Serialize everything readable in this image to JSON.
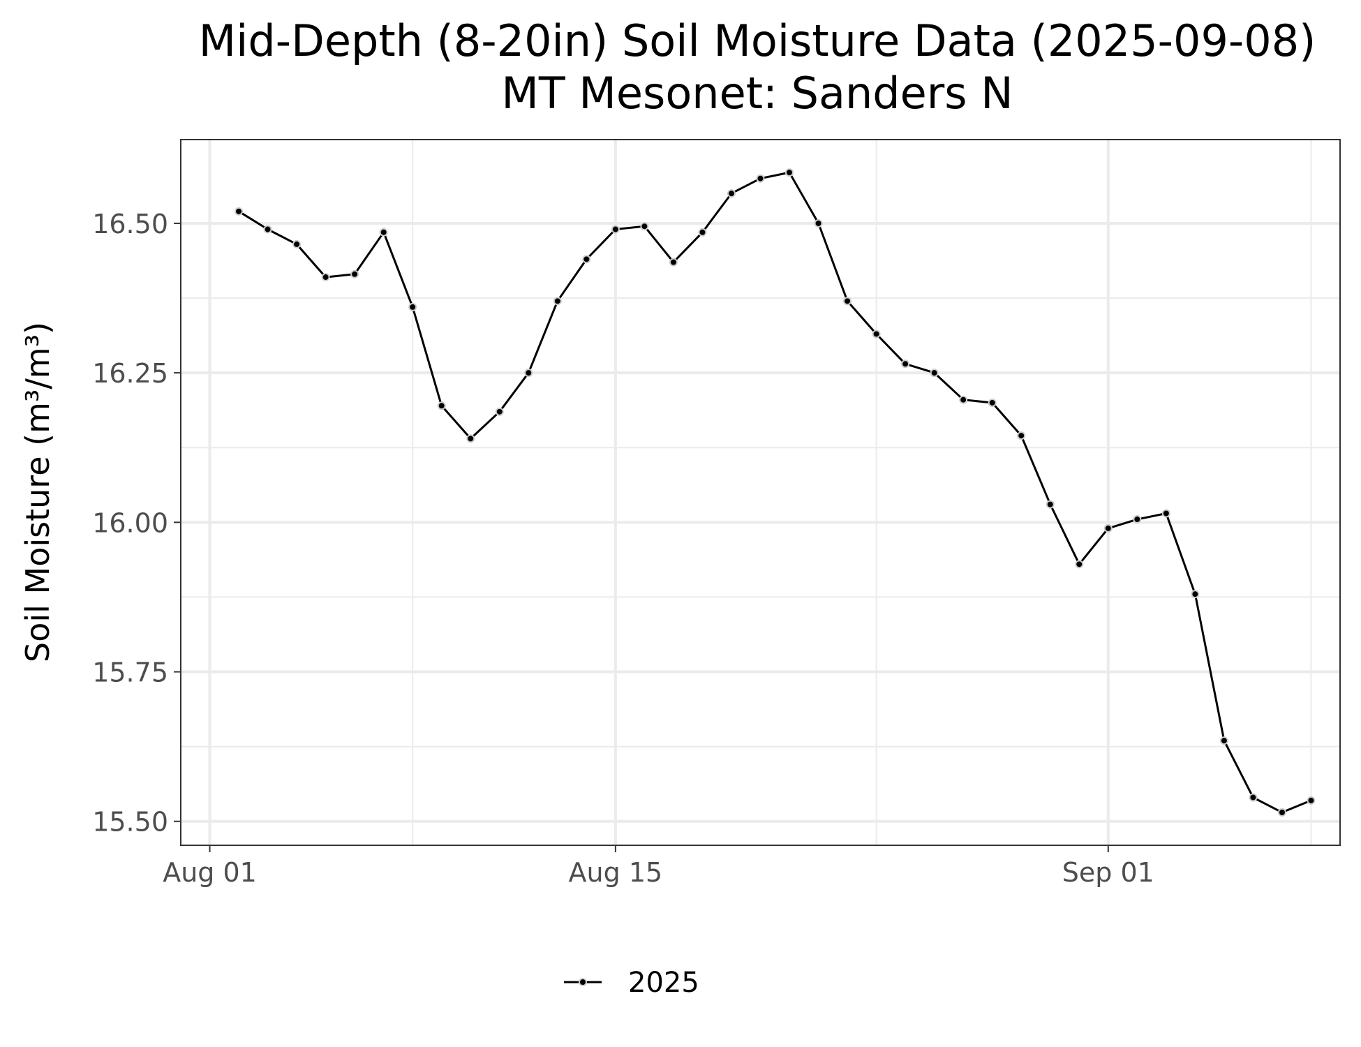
{
  "chart_data": {
    "type": "line",
    "title": "Mid-Depth (8-20in) Soil Moisture Data (2025-09-08)",
    "subtitle": "MT Mesonet: Sanders N",
    "xlabel": "",
    "ylabel": "Soil Moisture (m³/m³)",
    "x_axis_type": "date",
    "xlim": [
      "2025-07-31",
      "2025-09-09"
    ],
    "x_major_ticks": [
      "2025-08-01",
      "2025-08-15",
      "2025-09-01"
    ],
    "x_tick_labels": [
      "Aug 01",
      "Aug 15",
      "Sep 01"
    ],
    "x_minor_ticks": [
      "2025-08-08",
      "2025-08-24",
      "2025-09-08"
    ],
    "ylim": [
      15.46,
      16.64
    ],
    "y_major_ticks": [
      15.5,
      15.75,
      16.0,
      16.25,
      16.5
    ],
    "y_tick_labels": [
      "15.50",
      "15.75",
      "16.00",
      "16.25",
      "16.50"
    ],
    "grid": true,
    "legend_position": "bottom",
    "series": [
      {
        "name": "2025",
        "color": "#000000",
        "x": [
          "2025-08-02",
          "2025-08-03",
          "2025-08-04",
          "2025-08-05",
          "2025-08-06",
          "2025-08-07",
          "2025-08-08",
          "2025-08-09",
          "2025-08-10",
          "2025-08-11",
          "2025-08-12",
          "2025-08-13",
          "2025-08-14",
          "2025-08-15",
          "2025-08-16",
          "2025-08-17",
          "2025-08-18",
          "2025-08-19",
          "2025-08-20",
          "2025-08-21",
          "2025-08-22",
          "2025-08-23",
          "2025-08-24",
          "2025-08-25",
          "2025-08-26",
          "2025-08-27",
          "2025-08-28",
          "2025-08-29",
          "2025-08-30",
          "2025-08-31",
          "2025-09-01",
          "2025-09-02",
          "2025-09-03",
          "2025-09-04",
          "2025-09-05",
          "2025-09-06",
          "2025-09-07",
          "2025-09-08"
        ],
        "values": [
          16.52,
          16.49,
          16.465,
          16.41,
          16.415,
          16.485,
          16.36,
          16.195,
          16.14,
          16.185,
          16.25,
          16.37,
          16.44,
          16.49,
          16.495,
          16.435,
          16.485,
          16.55,
          16.575,
          16.585,
          16.5,
          16.37,
          16.315,
          16.265,
          16.25,
          16.205,
          16.2,
          16.145,
          16.03,
          15.93,
          15.99,
          16.005,
          16.015,
          15.88,
          15.635,
          15.54,
          15.515,
          15.535
        ]
      }
    ]
  }
}
